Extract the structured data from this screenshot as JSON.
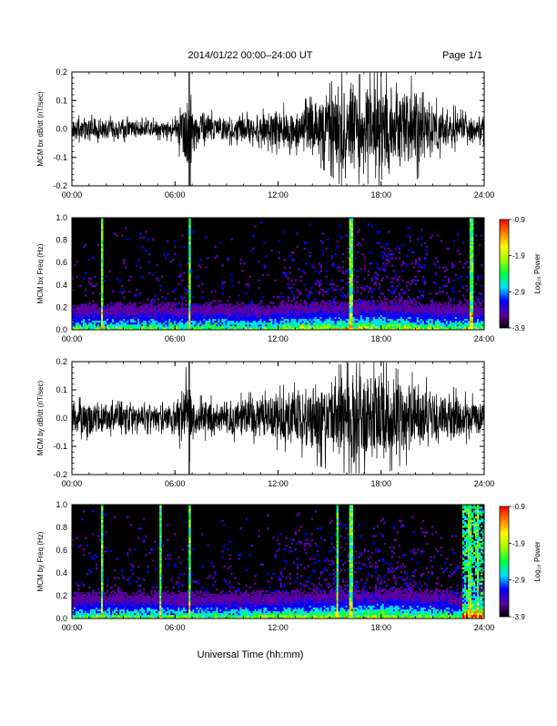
{
  "header": {
    "title": "2014/01/22  00:00–24:00 UT",
    "page": "Page 1/1"
  },
  "footer": {
    "xlabel": "Universal Time (hh:mm)"
  },
  "colorbar": {
    "label": "Log₁₀ Power",
    "ticks": [
      "-0.9",
      "-1.9",
      "-2.9",
      "-3.9"
    ],
    "colors": [
      "#000000",
      "#5a00a0",
      "#0000ff",
      "#00e0ff",
      "#00ff40",
      "#a0ff00",
      "#ffff00",
      "#ff8000",
      "#ff0000"
    ]
  },
  "chart_data": [
    {
      "type": "line",
      "ylabel": "MCM bx dB/dt (nT/sec)",
      "xlim": [
        "00:00",
        "24:00"
      ],
      "ylim": [
        -0.2,
        0.2
      ],
      "xticks": [
        "00:00",
        "06:00",
        "12:00",
        "18:00",
        "24:00"
      ],
      "yticks": [
        "-0.2",
        "-0.1",
        "0.0",
        "0.1",
        "0.2"
      ],
      "series": [
        {
          "x_hours": [
            0,
            1,
            2,
            3,
            4,
            5,
            6,
            6.9,
            7,
            7.1,
            8,
            9,
            10,
            11,
            12,
            13,
            14,
            15,
            16,
            17,
            18,
            19,
            20,
            21,
            22,
            23,
            24
          ],
          "envelope": [
            0.04,
            0.045,
            0.04,
            0.04,
            0.035,
            0.035,
            0.04,
            0.2,
            0.06,
            0.09,
            0.06,
            0.05,
            0.05,
            0.06,
            0.08,
            0.08,
            0.1,
            0.14,
            0.19,
            0.16,
            0.2,
            0.17,
            0.16,
            0.1,
            0.08,
            0.05,
            0.05
          ]
        }
      ]
    },
    {
      "type": "heatmap",
      "ylabel": "MCM bx Freq (Hz)",
      "xlim": [
        "00:00",
        "24:00"
      ],
      "ylim": [
        0.0,
        1.0
      ],
      "xticks": [
        "00:00",
        "06:00",
        "12:00",
        "18:00",
        "24:00"
      ],
      "yticks": [
        "0.0",
        "0.2",
        "0.4",
        "0.6",
        "0.8",
        "1.0"
      ],
      "zlim": [
        -3.9,
        -0.9
      ],
      "events_hours": [
        1.7,
        6.8,
        16.2,
        23.2
      ]
    },
    {
      "type": "line",
      "ylabel": "MCM by dB/dt (nT/sec)",
      "xlim": [
        "00:00",
        "24:00"
      ],
      "ylim": [
        -0.2,
        0.2
      ],
      "xticks": [
        "00:00",
        "06:00",
        "12:00",
        "18:00",
        "24:00"
      ],
      "yticks": [
        "-0.2",
        "-0.1",
        "0.0",
        "0.1",
        "0.2"
      ],
      "series": [
        {
          "x_hours": [
            0,
            1,
            2,
            3,
            4,
            5,
            6,
            6.9,
            7,
            7.1,
            8,
            9,
            10,
            11,
            12,
            13,
            14,
            15,
            16,
            17,
            18,
            19,
            20,
            21,
            22,
            23,
            24
          ],
          "envelope": [
            0.06,
            0.07,
            0.06,
            0.05,
            0.05,
            0.05,
            0.05,
            0.2,
            0.06,
            0.07,
            0.07,
            0.07,
            0.08,
            0.08,
            0.1,
            0.11,
            0.14,
            0.16,
            0.17,
            0.17,
            0.18,
            0.15,
            0.14,
            0.12,
            0.1,
            0.08,
            0.07
          ]
        }
      ]
    },
    {
      "type": "heatmap",
      "ylabel": "MCM by Freq (Hz)",
      "xlim": [
        "00:00",
        "24:00"
      ],
      "ylim": [
        0.0,
        1.0
      ],
      "xticks": [
        "00:00",
        "06:00",
        "12:00",
        "18:00",
        "24:00"
      ],
      "yticks": [
        "0.0",
        "0.2",
        "0.4",
        "0.6",
        "0.8",
        "1.0"
      ],
      "zlim": [
        -3.9,
        -0.9
      ],
      "events_hours": [
        1.7,
        5.1,
        6.8,
        15.4,
        16.2,
        23.1,
        23.6
      ]
    }
  ]
}
